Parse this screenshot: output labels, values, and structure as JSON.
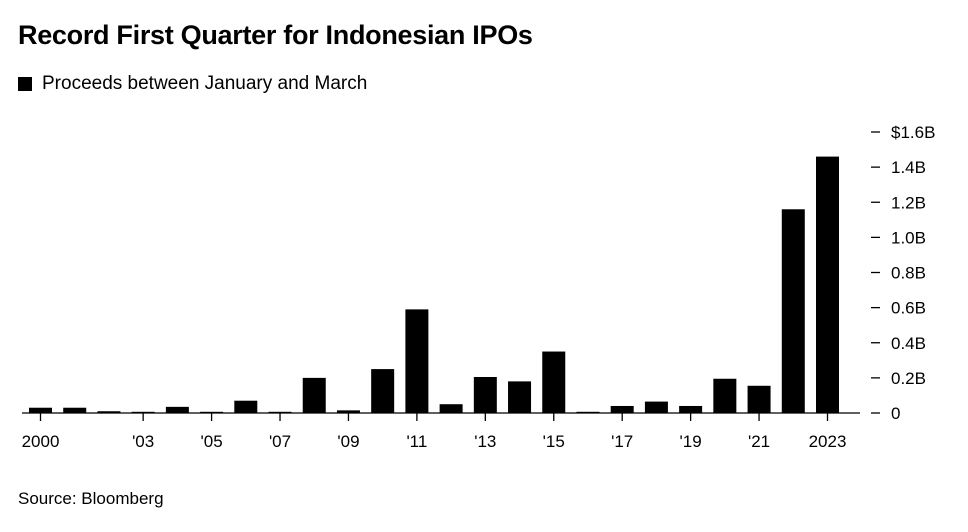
{
  "title": "Record First Quarter for Indonesian IPOs",
  "legend": {
    "label": "Proceeds between January and March",
    "color": "#000000"
  },
  "source": "Source: Bloomberg",
  "chart_data": {
    "type": "bar",
    "title": "Record First Quarter for Indonesian IPOs",
    "series": [
      {
        "name": "Proceeds between January and March",
        "color": "#000000",
        "values": [
          0.03,
          0.03,
          0.01,
          0.005,
          0.035,
          0.005,
          0.07,
          0.005,
          0.2,
          0.015,
          0.25,
          0.59,
          0.05,
          0.205,
          0.18,
          0.35,
          0.005,
          0.04,
          0.065,
          0.04,
          0.195,
          0.155,
          1.16,
          1.46
        ]
      }
    ],
    "categories": [
      "2000",
      "2001",
      "2002",
      "2003",
      "2004",
      "2005",
      "2006",
      "2007",
      "2008",
      "2009",
      "2010",
      "2011",
      "2012",
      "2013",
      "2014",
      "2015",
      "2016",
      "2017",
      "2018",
      "2019",
      "2020",
      "2021",
      "2022",
      "2023"
    ],
    "x_tick_labels": [
      "2000",
      "",
      "",
      "'03",
      "",
      "'05",
      "",
      "'07",
      "",
      "'09",
      "",
      "'11",
      "",
      "'13",
      "",
      "'15",
      "",
      "'17",
      "",
      "'19",
      "",
      "'21",
      "",
      "2023"
    ],
    "y_ticks": [
      {
        "value": 0,
        "label": "0"
      },
      {
        "value": 0.2,
        "label": "0.2B"
      },
      {
        "value": 0.4,
        "label": "0.4B"
      },
      {
        "value": 0.6,
        "label": "0.6B"
      },
      {
        "value": 0.8,
        "label": "0.8B"
      },
      {
        "value": 1.0,
        "label": "1.0B"
      },
      {
        "value": 1.2,
        "label": "1.2B"
      },
      {
        "value": 1.4,
        "label": "1.4B"
      },
      {
        "value": 1.6,
        "label": "$1.6B"
      }
    ],
    "ylim": [
      0,
      1.6
    ],
    "xlabel": "",
    "ylabel": "",
    "grid": false,
    "legend_position": "top-left"
  }
}
